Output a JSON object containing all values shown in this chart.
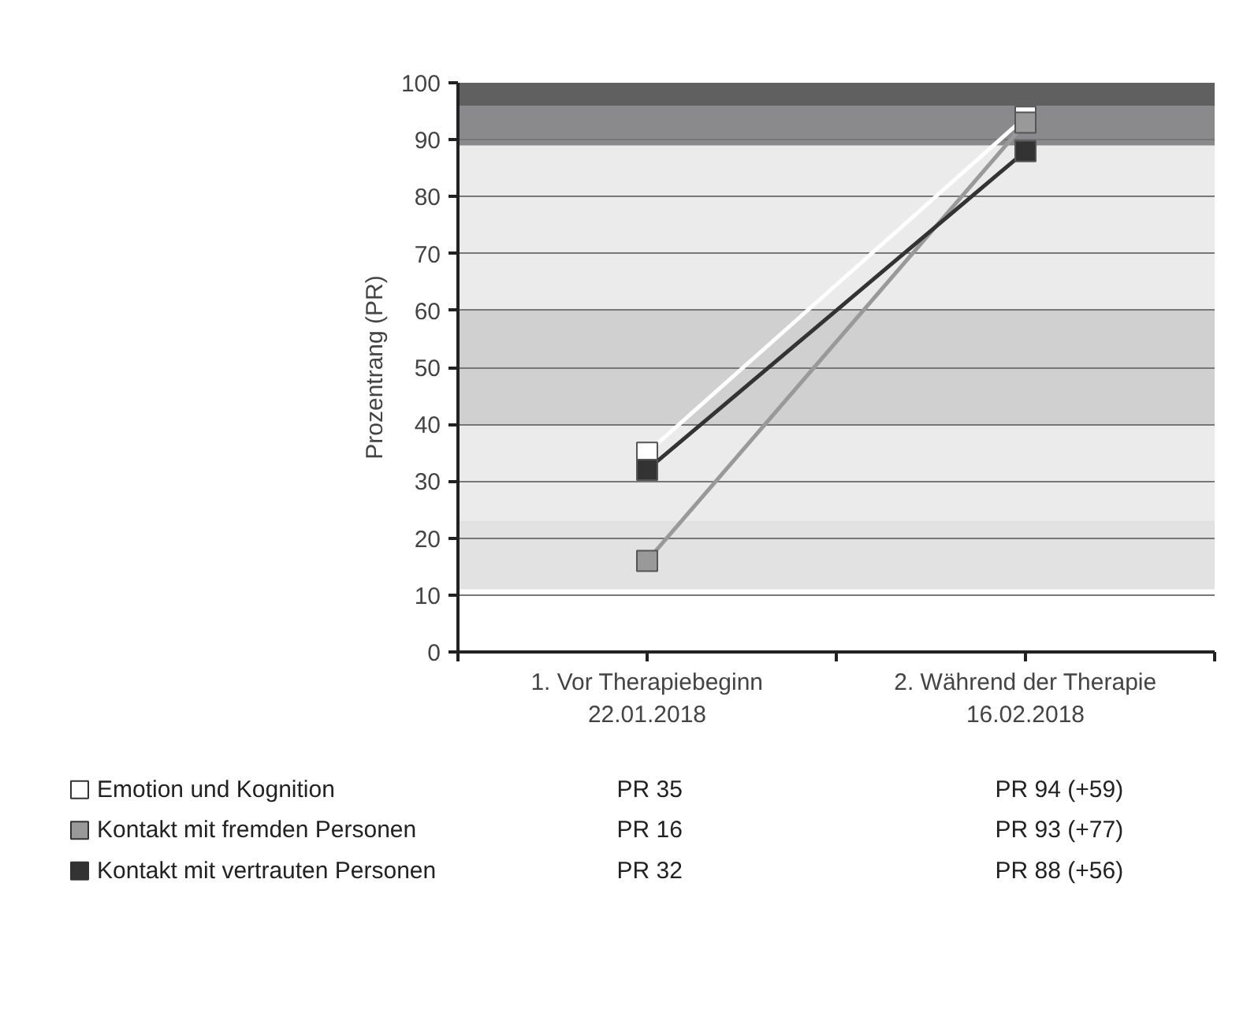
{
  "chart_data": {
    "type": "line",
    "ylabel": "Prozentrang (PR)",
    "categories": [
      "1. Vor Therapiebeginn\n22.01.2018",
      "2. Während der Therapie\n16.02.2018"
    ],
    "series": [
      {
        "name": "Emotion und Kognition",
        "color": "#ffffff",
        "values": [
          35,
          94
        ],
        "value_labels": [
          "PR 35",
          "PR 94 (+59)"
        ]
      },
      {
        "name": "Kontakt mit fremden Personen",
        "color": "#999999",
        "values": [
          16,
          93
        ],
        "value_labels": [
          "PR 16",
          "PR 93 (+77)"
        ]
      },
      {
        "name": "Kontakt mit vertrauten Personen",
        "color": "#333333",
        "values": [
          32,
          88
        ],
        "value_labels": [
          "PR 32",
          "PR 88 (+56)"
        ]
      }
    ],
    "ylim": [
      0,
      100
    ],
    "yticks": [
      0,
      10,
      20,
      30,
      40,
      50,
      60,
      70,
      80,
      90,
      100
    ],
    "bands": [
      {
        "axis": "y",
        "from": 11,
        "to": 23,
        "color": "#e2e2e2"
      },
      {
        "axis": "y",
        "from": 23,
        "to": 40,
        "color": "#ebebeb"
      },
      {
        "axis": "y",
        "from": 40,
        "to": 60,
        "color": "#d0d0d0"
      },
      {
        "axis": "y",
        "from": 60,
        "to": 89,
        "color": "#ebebeb"
      },
      {
        "axis": "y",
        "from": 89,
        "to": 96,
        "color": "#8a8a8d"
      },
      {
        "axis": "y",
        "from": 96,
        "to": 100,
        "color": "#606060"
      }
    ],
    "grid": "y",
    "legend": "bottom",
    "marker": "square",
    "line_style": "solid"
  }
}
